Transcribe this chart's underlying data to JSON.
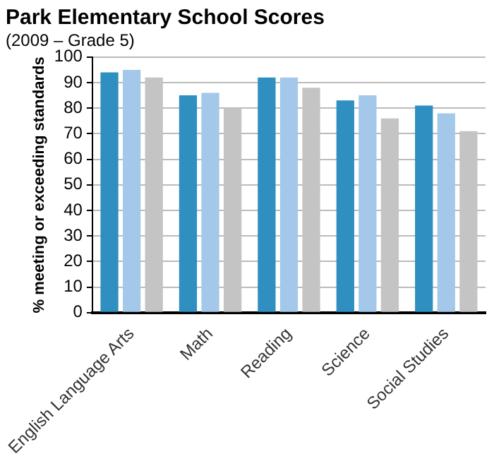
{
  "chart_data": {
    "type": "bar",
    "title": "Park Elementary School Scores",
    "subtitle": "(2009 – Grade 5)",
    "ylabel": "% meeting or exceeding standards",
    "categories": [
      "English Language Arts",
      "Math",
      "Reading",
      "Science",
      "Social Studies"
    ],
    "series": [
      {
        "color": "#2e8fc0",
        "values": [
          94,
          85,
          92,
          83,
          81
        ]
      },
      {
        "color": "#a3c8ea",
        "values": [
          95,
          86,
          92,
          85,
          78
        ]
      },
      {
        "color": "#c4c4c4",
        "values": [
          92,
          80,
          88,
          76,
          71
        ]
      }
    ],
    "ylim": [
      0,
      100
    ],
    "yticks": [
      0,
      10,
      20,
      30,
      40,
      50,
      60,
      70,
      80,
      90,
      100
    ],
    "grid": "y",
    "legend": false
  }
}
